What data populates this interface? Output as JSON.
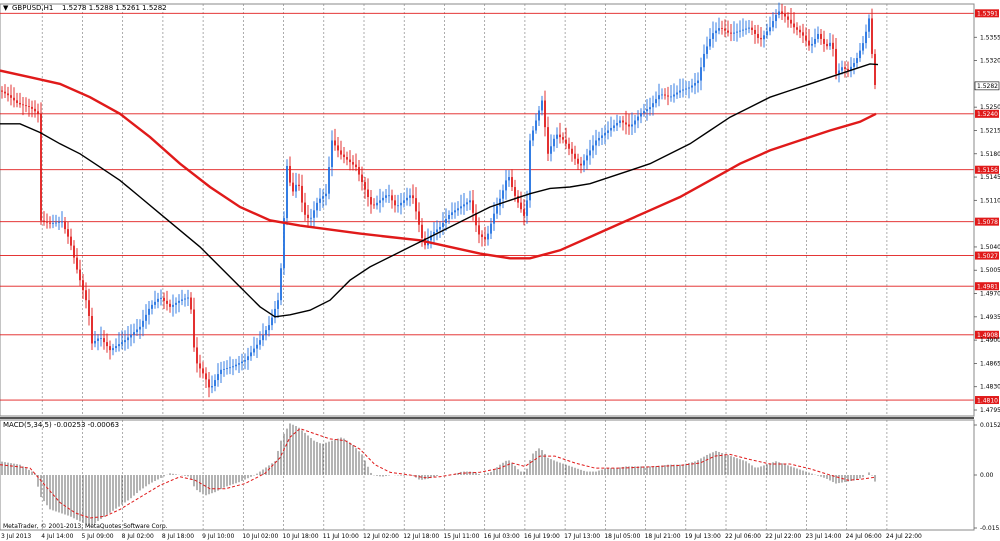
{
  "header": {
    "symbol": "GBPUSD,H1",
    "ohlc": "1.5278 1.5288 1.5261 1.5282"
  },
  "macd_header": "MACD(5,34,5) -0.00253 -0.00063",
  "footer": "MetaTrader, © 2001-2013, MetaQuotes Software Corp.",
  "colors": {
    "bull": "#1f6fe0",
    "bear": "#e01a1a",
    "ma_fast": "#000000",
    "ma_slow": "#e01a1a",
    "level_line": "#e01a1a",
    "grid": "#8a8a8a"
  },
  "chart_data": {
    "type": "candlestick",
    "price_axis": {
      "min": 1.4786,
      "max": 1.5405,
      "tick_labels": [
        "1.5355",
        "1.5320",
        "1.5250",
        "1.5215",
        "1.5180",
        "1.5145",
        "1.5110",
        "1.5040",
        "1.5005",
        "1.4970",
        "1.4935",
        "1.4900",
        "1.4865",
        "1.4830",
        "1.4795"
      ]
    },
    "current_price": "1.5282",
    "level_lines": [
      "1.5391",
      "1.5240",
      "1.5156",
      "1.5078",
      "1.5027",
      "1.4981",
      "1.4908",
      "1.4810"
    ],
    "time_labels": [
      "3 Jul 2013",
      "4 Jul 14:00",
      "5 Jul 09:00",
      "8 Jul 02:00",
      "8 Jul 18:00",
      "9 Jul 10:00",
      "10 Jul 02:00",
      "10 Jul 18:00",
      "11 Jul 10:00",
      "12 Jul 02:00",
      "12 Jul 18:00",
      "15 Jul 11:00",
      "16 Jul 03:00",
      "16 Jul 19:00",
      "17 Jul 13:00",
      "18 Jul 05:00",
      "18 Jul 21:00",
      "19 Jul 13:00",
      "22 Jul 06:00",
      "22 Jul 22:00",
      "23 Jul 14:00",
      "24 Jul 06:00",
      "24 Jul 22:00"
    ],
    "close_path": [
      [
        0,
        1.5275
      ],
      [
        8,
        1.5268
      ],
      [
        18,
        1.5255
      ],
      [
        30,
        1.525
      ],
      [
        38,
        1.524
      ],
      [
        40,
        1.508
      ],
      [
        50,
        1.5075
      ],
      [
        62,
        1.5078
      ],
      [
        70,
        1.5048
      ],
      [
        78,
        1.5
      ],
      [
        88,
        1.495
      ],
      [
        92,
        1.4895
      ],
      [
        100,
        1.4905
      ],
      [
        110,
        1.4885
      ],
      [
        125,
        1.49
      ],
      [
        140,
        1.492
      ],
      [
        150,
        1.495
      ],
      [
        160,
        1.4965
      ],
      [
        170,
        1.495
      ],
      [
        180,
        1.496
      ],
      [
        190,
        1.4965
      ],
      [
        195,
        1.487
      ],
      [
        205,
        1.4845
      ],
      [
        210,
        1.4825
      ],
      [
        220,
        1.4855
      ],
      [
        232,
        1.486
      ],
      [
        245,
        1.487
      ],
      [
        258,
        1.4895
      ],
      [
        270,
        1.4925
      ],
      [
        278,
        1.496
      ],
      [
        283,
        1.504
      ],
      [
        286,
        1.517
      ],
      [
        292,
        1.512
      ],
      [
        298,
        1.514
      ],
      [
        304,
        1.509
      ],
      [
        310,
        1.508
      ],
      [
        318,
        1.511
      ],
      [
        326,
        1.512
      ],
      [
        332,
        1.52
      ],
      [
        340,
        1.518
      ],
      [
        348,
        1.517
      ],
      [
        356,
        1.516
      ],
      [
        364,
        1.513
      ],
      [
        372,
        1.51
      ],
      [
        380,
        1.511
      ],
      [
        388,
        1.512
      ],
      [
        396,
        1.51
      ],
      [
        404,
        1.511
      ],
      [
        412,
        1.512
      ],
      [
        418,
        1.508
      ],
      [
        424,
        1.504
      ],
      [
        432,
        1.506
      ],
      [
        440,
        1.507
      ],
      [
        450,
        1.509
      ],
      [
        460,
        1.51
      ],
      [
        470,
        1.511
      ],
      [
        478,
        1.506
      ],
      [
        486,
        1.505
      ],
      [
        494,
        1.509
      ],
      [
        502,
        1.512
      ],
      [
        508,
        1.515
      ],
      [
        514,
        1.512
      ],
      [
        520,
        1.51
      ],
      [
        526,
        1.508
      ],
      [
        530,
        1.52
      ],
      [
        536,
        1.523
      ],
      [
        542,
        1.526
      ],
      [
        548,
        1.518
      ],
      [
        556,
        1.521
      ],
      [
        564,
        1.52
      ],
      [
        572,
        1.518
      ],
      [
        580,
        1.516
      ],
      [
        588,
        1.518
      ],
      [
        596,
        1.52
      ],
      [
        604,
        1.521
      ],
      [
        612,
        1.522
      ],
      [
        620,
        1.523
      ],
      [
        630,
        1.522
      ],
      [
        640,
        1.524
      ],
      [
        650,
        1.525
      ],
      [
        660,
        1.527
      ],
      [
        670,
        1.5265
      ],
      [
        680,
        1.5275
      ],
      [
        690,
        1.528
      ],
      [
        698,
        1.529
      ],
      [
        704,
        1.533
      ],
      [
        712,
        1.536
      ],
      [
        720,
        1.537
      ],
      [
        730,
        1.536
      ],
      [
        740,
        1.5365
      ],
      [
        750,
        1.537
      ],
      [
        760,
        1.535
      ],
      [
        770,
        1.537
      ],
      [
        778,
        1.5395
      ],
      [
        786,
        1.5385
      ],
      [
        794,
        1.537
      ],
      [
        802,
        1.536
      ],
      [
        810,
        1.534
      ],
      [
        818,
        1.536
      ],
      [
        826,
        1.534
      ],
      [
        832,
        1.535
      ],
      [
        836,
        1.53
      ],
      [
        842,
        1.531
      ],
      [
        848,
        1.5305
      ],
      [
        856,
        1.532
      ],
      [
        864,
        1.535
      ],
      [
        870,
        1.539
      ],
      [
        873,
        1.53
      ],
      [
        876,
        1.5275
      ]
    ],
    "ma_fast_path": [
      [
        0,
        1.5225
      ],
      [
        20,
        1.5225
      ],
      [
        40,
        1.5212
      ],
      [
        60,
        1.5195
      ],
      [
        80,
        1.518
      ],
      [
        100,
        1.516
      ],
      [
        120,
        1.514
      ],
      [
        140,
        1.5115
      ],
      [
        160,
        1.509
      ],
      [
        180,
        1.5065
      ],
      [
        200,
        1.504
      ],
      [
        220,
        1.501
      ],
      [
        240,
        1.498
      ],
      [
        260,
        1.495
      ],
      [
        275,
        1.4935
      ],
      [
        290,
        1.4938
      ],
      [
        310,
        1.4945
      ],
      [
        330,
        1.496
      ],
      [
        350,
        1.499
      ],
      [
        370,
        1.501
      ],
      [
        390,
        1.5025
      ],
      [
        410,
        1.504
      ],
      [
        430,
        1.5055
      ],
      [
        450,
        1.507
      ],
      [
        470,
        1.5085
      ],
      [
        490,
        1.51
      ],
      [
        510,
        1.511
      ],
      [
        530,
        1.512
      ],
      [
        550,
        1.5128
      ],
      [
        570,
        1.513
      ],
      [
        590,
        1.5135
      ],
      [
        610,
        1.5145
      ],
      [
        630,
        1.5155
      ],
      [
        650,
        1.5165
      ],
      [
        670,
        1.518
      ],
      [
        690,
        1.5195
      ],
      [
        710,
        1.5215
      ],
      [
        730,
        1.5235
      ],
      [
        750,
        1.525
      ],
      [
        770,
        1.5265
      ],
      [
        790,
        1.5275
      ],
      [
        810,
        1.5285
      ],
      [
        830,
        1.5295
      ],
      [
        850,
        1.5305
      ],
      [
        870,
        1.5315
      ],
      [
        878,
        1.5314
      ]
    ],
    "ma_slow_path": [
      [
        0,
        1.5305
      ],
      [
        30,
        1.5295
      ],
      [
        60,
        1.5285
      ],
      [
        90,
        1.5265
      ],
      [
        120,
        1.524
      ],
      [
        150,
        1.5205
      ],
      [
        180,
        1.5165
      ],
      [
        210,
        1.513
      ],
      [
        240,
        1.51
      ],
      [
        270,
        1.508
      ],
      [
        300,
        1.5072
      ],
      [
        330,
        1.5066
      ],
      [
        360,
        1.506
      ],
      [
        390,
        1.5055
      ],
      [
        420,
        1.505
      ],
      [
        450,
        1.504
      ],
      [
        480,
        1.503
      ],
      [
        510,
        1.5023
      ],
      [
        530,
        1.5023
      ],
      [
        560,
        1.5035
      ],
      [
        590,
        1.5055
      ],
      [
        620,
        1.5075
      ],
      [
        650,
        1.5095
      ],
      [
        680,
        1.5115
      ],
      [
        710,
        1.514
      ],
      [
        740,
        1.5165
      ],
      [
        770,
        1.5185
      ],
      [
        800,
        1.52
      ],
      [
        830,
        1.5215
      ],
      [
        860,
        1.5228
      ],
      [
        876,
        1.524
      ]
    ],
    "macd_axis": {
      "tick_labels": [
        "0.0152",
        "0.00",
        "-0.01557"
      ],
      "min": -0.016,
      "max": 0.016
    },
    "macd_path": [
      [
        0,
        0.004
      ],
      [
        20,
        0.003
      ],
      [
        35,
        0.0005
      ],
      [
        40,
        -0.006
      ],
      [
        50,
        -0.01
      ],
      [
        60,
        -0.011
      ],
      [
        70,
        -0.012
      ],
      [
        80,
        -0.0135
      ],
      [
        90,
        -0.015
      ],
      [
        100,
        -0.013
      ],
      [
        110,
        -0.011
      ],
      [
        120,
        -0.009
      ],
      [
        130,
        -0.007
      ],
      [
        140,
        -0.0045
      ],
      [
        150,
        -0.0025
      ],
      [
        160,
        -0.001
      ],
      [
        170,
        0.0005
      ],
      [
        180,
        0.0
      ],
      [
        190,
        -0.0005
      ],
      [
        195,
        -0.004
      ],
      [
        205,
        -0.006
      ],
      [
        215,
        -0.005
      ],
      [
        225,
        -0.0035
      ],
      [
        240,
        -0.002
      ],
      [
        255,
        0.0
      ],
      [
        265,
        0.002
      ],
      [
        275,
        0.004
      ],
      [
        282,
        0.011
      ],
      [
        290,
        0.015
      ],
      [
        298,
        0.014
      ],
      [
        306,
        0.012
      ],
      [
        314,
        0.01
      ],
      [
        322,
        0.009
      ],
      [
        332,
        0.01
      ],
      [
        342,
        0.011
      ],
      [
        352,
        0.009
      ],
      [
        362,
        0.006
      ],
      [
        372,
        0.0
      ],
      [
        382,
        -0.0005
      ],
      [
        392,
        0.0
      ],
      [
        402,
        -0.0002
      ],
      [
        412,
        0.0
      ],
      [
        420,
        -0.0015
      ],
      [
        430,
        -0.001
      ],
      [
        440,
        0.0
      ],
      [
        452,
        0.0
      ],
      [
        462,
        0.001
      ],
      [
        472,
        0.001
      ],
      [
        482,
        0.0
      ],
      [
        492,
        0.001
      ],
      [
        500,
        0.003
      ],
      [
        508,
        0.0045
      ],
      [
        514,
        0.003
      ],
      [
        520,
        0.001
      ],
      [
        526,
        0.001
      ],
      [
        532,
        0.006
      ],
      [
        540,
        0.008
      ],
      [
        548,
        0.005
      ],
      [
        556,
        0.004
      ],
      [
        566,
        0.003
      ],
      [
        576,
        0.002
      ],
      [
        586,
        0.001
      ],
      [
        596,
        0.001
      ],
      [
        606,
        0.002
      ],
      [
        616,
        0.002
      ],
      [
        626,
        0.0025
      ],
      [
        640,
        0.0025
      ],
      [
        654,
        0.0025
      ],
      [
        668,
        0.003
      ],
      [
        682,
        0.003
      ],
      [
        696,
        0.004
      ],
      [
        708,
        0.006
      ],
      [
        716,
        0.007
      ],
      [
        726,
        0.006
      ],
      [
        736,
        0.005
      ],
      [
        746,
        0.004
      ],
      [
        756,
        0.002
      ],
      [
        766,
        0.003
      ],
      [
        776,
        0.004
      ],
      [
        786,
        0.003
      ],
      [
        796,
        0.002
      ],
      [
        806,
        0.001
      ],
      [
        816,
        0.0
      ],
      [
        826,
        -0.001
      ],
      [
        836,
        -0.0025
      ],
      [
        846,
        -0.002
      ],
      [
        856,
        -0.0015
      ],
      [
        864,
        -0.0005
      ],
      [
        870,
        0.001
      ],
      [
        876,
        -0.0025
      ]
    ],
    "macd_signal_path": [
      [
        0,
        0.003
      ],
      [
        30,
        0.002
      ],
      [
        45,
        -0.003
      ],
      [
        60,
        -0.008
      ],
      [
        75,
        -0.011
      ],
      [
        90,
        -0.0125
      ],
      [
        105,
        -0.012
      ],
      [
        120,
        -0.01
      ],
      [
        140,
        -0.0065
      ],
      [
        160,
        -0.003
      ],
      [
        180,
        -0.0005
      ],
      [
        195,
        -0.0015
      ],
      [
        210,
        -0.004
      ],
      [
        225,
        -0.004
      ],
      [
        245,
        -0.0025
      ],
      [
        265,
        0.0005
      ],
      [
        280,
        0.005
      ],
      [
        290,
        0.011
      ],
      [
        300,
        0.0135
      ],
      [
        315,
        0.012
      ],
      [
        330,
        0.0105
      ],
      [
        345,
        0.01
      ],
      [
        360,
        0.0075
      ],
      [
        375,
        0.003
      ],
      [
        390,
        0.0008
      ],
      [
        410,
        0.0
      ],
      [
        425,
        -0.0008
      ],
      [
        440,
        -0.0005
      ],
      [
        460,
        0.0005
      ],
      [
        480,
        0.0008
      ],
      [
        500,
        0.002
      ],
      [
        512,
        0.0035
      ],
      [
        525,
        0.0025
      ],
      [
        540,
        0.0055
      ],
      [
        555,
        0.0055
      ],
      [
        575,
        0.0035
      ],
      [
        595,
        0.002
      ],
      [
        620,
        0.002
      ],
      [
        650,
        0.0024
      ],
      [
        680,
        0.0028
      ],
      [
        700,
        0.0035
      ],
      [
        715,
        0.0055
      ],
      [
        730,
        0.006
      ],
      [
        750,
        0.0045
      ],
      [
        770,
        0.0032
      ],
      [
        790,
        0.0032
      ],
      [
        810,
        0.0018
      ],
      [
        830,
        0.0
      ],
      [
        848,
        -0.0015
      ],
      [
        862,
        -0.0012
      ],
      [
        876,
        -0.0006
      ]
    ]
  }
}
